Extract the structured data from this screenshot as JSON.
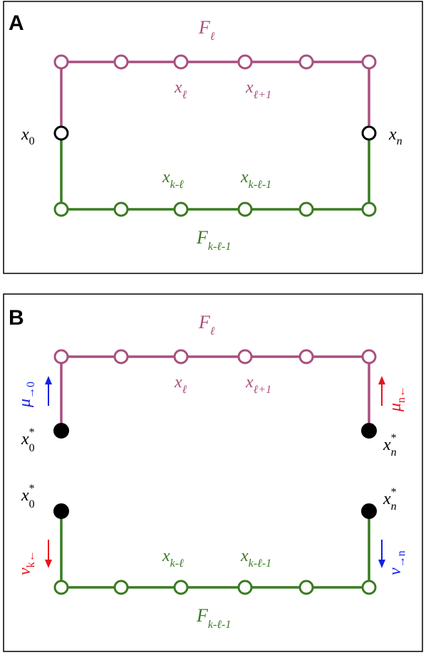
{
  "panel_a": {
    "letter": "A",
    "top_path": {
      "name": "F",
      "sub": "ℓ",
      "node_labels": [
        {
          "base": "x",
          "sub": "ℓ"
        },
        {
          "base": "x",
          "sub": "ℓ+1"
        }
      ]
    },
    "bottom_path": {
      "name": "F",
      "sub": "k-ℓ-1",
      "node_labels": [
        {
          "base": "x",
          "sub": "k-ℓ"
        },
        {
          "base": "x",
          "sub": "k-ℓ-1"
        }
      ]
    },
    "left_node": {
      "base": "x",
      "sub": "0"
    },
    "right_node": {
      "base": "x",
      "sub": "n"
    }
  },
  "panel_b": {
    "letter": "B",
    "top_path": {
      "name": "F",
      "sub": "ℓ",
      "node_labels": [
        {
          "base": "x",
          "sub": "ℓ"
        },
        {
          "base": "x",
          "sub": "ℓ+1"
        }
      ]
    },
    "bottom_path": {
      "name": "F",
      "sub": "k-ℓ-1",
      "node_labels": [
        {
          "base": "x",
          "sub": "k-ℓ"
        },
        {
          "base": "x",
          "sub": "k-ℓ-1"
        }
      ]
    },
    "top_left_node": {
      "base": "x",
      "sup": "*",
      "sub": "0"
    },
    "top_right_node": {
      "base": "x",
      "sup": "*",
      "sub": "n"
    },
    "bottom_left_node": {
      "base": "x",
      "sup": "*",
      "sub": "0"
    },
    "bottom_right_node": {
      "base": "x",
      "sup": "*",
      "sub": "n"
    },
    "messages": {
      "mu_left": {
        "base": "μ",
        "sub": "→0",
        "color": "#1220e6"
      },
      "mu_right": {
        "base": "μ",
        "sub": "n←",
        "color": "#e8141e"
      },
      "nu_left": {
        "base": "ν",
        "sub": "k←",
        "color": "#e8141e"
      },
      "nu_right": {
        "base": "ν",
        "sub": "→n",
        "color": "#1220e6"
      }
    }
  },
  "colors": {
    "top_path": "#a8507f",
    "bottom_path": "#3a7b22",
    "forward_message": "#1220e6",
    "backward_message": "#e8141e"
  }
}
